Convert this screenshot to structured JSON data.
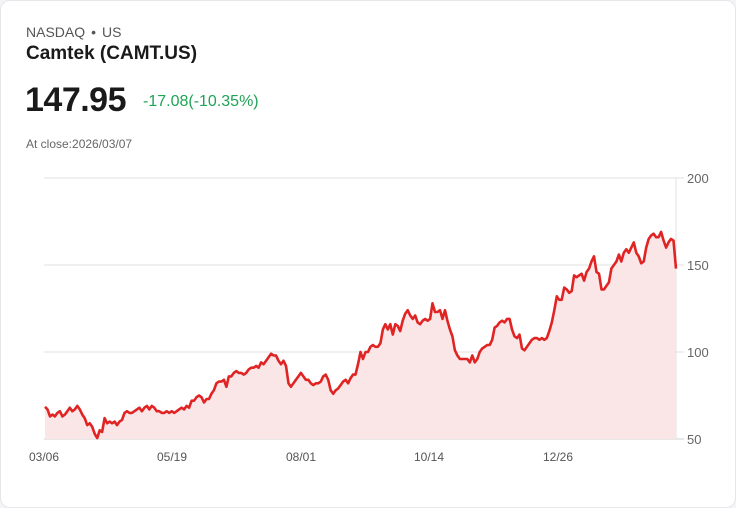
{
  "header": {
    "exchange": "NASDAQ",
    "separator": "•",
    "region": "US",
    "name": "Camtek (CAMT.US)",
    "price": "147.95",
    "change": "-17.08(-10.35%)",
    "close_label": "At close:2026/03/07"
  },
  "colors": {
    "line": "#e02424",
    "area": "#fbe6e7",
    "change": "#1fa356",
    "grid": "#e2e2e2"
  },
  "chart_data": {
    "type": "area",
    "title": "Camtek (CAMT.US)",
    "xlabel": "",
    "ylabel": "",
    "ylim": [
      50,
      200
    ],
    "yticks": [
      200,
      150,
      100,
      50
    ],
    "xticks": [
      "03/06",
      "05/19",
      "08/01",
      "10/14",
      "12/26"
    ],
    "grid": true,
    "legend": "none",
    "x_range": [
      "03/06",
      "03/07"
    ],
    "values": [
      68.5,
      67,
      63,
      64,
      63,
      65,
      66,
      63,
      64,
      66,
      68,
      66,
      67,
      69,
      67,
      64,
      62,
      58,
      59,
      57,
      53,
      50.5,
      55,
      54,
      62,
      59,
      60,
      59,
      60,
      58,
      60,
      61,
      65,
      66,
      65,
      65,
      66,
      67,
      68,
      66,
      68,
      69,
      67,
      69,
      68,
      66,
      66,
      65,
      65,
      66,
      65,
      66,
      65,
      66,
      67,
      68,
      67,
      69,
      68,
      72,
      72,
      74,
      75,
      74,
      71,
      73,
      73,
      76,
      78,
      82,
      83,
      83,
      84,
      80,
      86,
      86,
      88,
      89,
      88,
      88,
      87,
      88,
      90,
      91,
      91,
      92,
      91,
      94,
      93,
      95,
      97,
      99,
      98,
      98,
      95,
      93,
      95,
      92,
      82,
      80,
      82,
      84,
      86,
      88,
      86,
      84,
      84,
      82,
      81,
      82,
      82,
      83,
      86,
      87,
      84,
      78,
      76,
      78,
      79,
      81,
      83,
      84,
      82,
      85,
      87,
      87,
      93,
      100,
      96,
      100,
      100,
      103,
      104,
      103,
      103,
      105,
      113,
      116,
      113,
      116,
      110,
      116,
      115,
      112,
      118,
      122,
      124,
      121,
      119,
      121,
      117,
      116,
      118,
      119,
      118,
      119,
      128,
      123,
      123,
      124,
      119,
      124,
      118,
      113,
      109,
      101,
      98,
      96,
      96,
      96,
      96,
      94,
      98,
      94,
      96,
      100,
      102,
      103,
      104,
      104,
      107,
      114,
      115,
      117,
      118,
      117,
      119,
      119,
      113,
      109,
      108,
      110,
      102,
      101,
      103,
      105,
      107,
      108,
      108,
      107,
      108,
      107,
      108,
      112,
      117,
      124,
      132,
      130,
      130,
      137,
      136,
      134,
      135,
      144,
      143,
      144,
      145,
      141,
      146,
      148,
      152,
      155,
      146,
      145,
      136,
      136,
      138,
      140,
      148,
      150,
      152,
      156,
      152,
      157,
      159,
      157,
      160,
      163,
      157,
      155,
      151,
      152,
      160,
      165,
      167,
      168,
      166,
      166,
      169,
      164,
      160,
      163,
      165,
      164,
      147.95
    ]
  }
}
